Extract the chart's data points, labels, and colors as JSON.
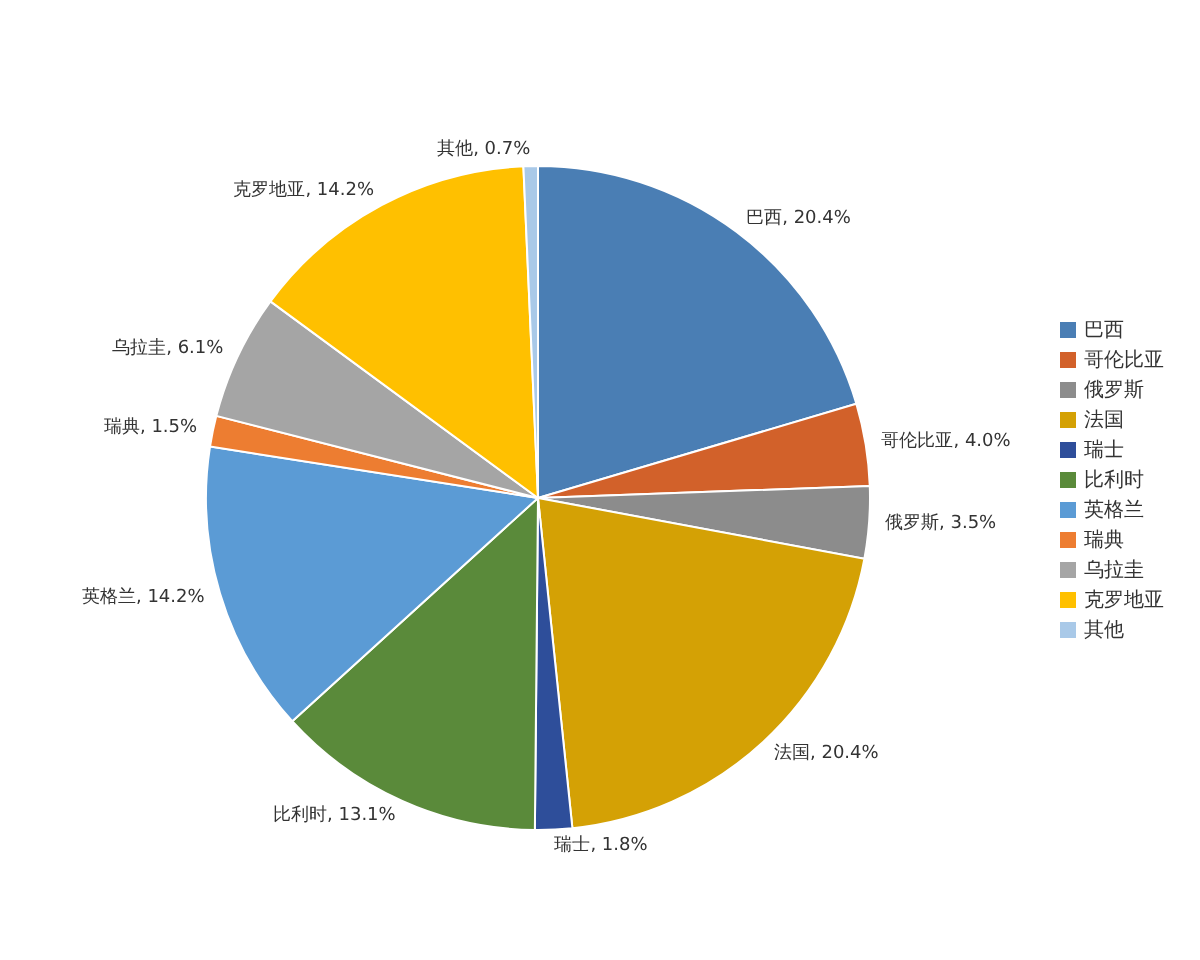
{
  "chart_data": {
    "type": "pie",
    "categories": [
      "巴西",
      "哥伦比亚",
      "俄罗斯",
      "法国",
      "瑞士",
      "比利时",
      "英格兰",
      "瑞典",
      "乌拉圭",
      "克罗地亚",
      "其他"
    ],
    "values": [
      20.4,
      4.0,
      3.5,
      20.4,
      1.8,
      13.1,
      14.2,
      1.5,
      6.1,
      14.2,
      0.7
    ],
    "value_labels": [
      "巴西, 20.4%",
      "哥伦比亚, 4.0%",
      "俄罗斯, 3.5%",
      "法国, 20.4%",
      "瑞士, 1.8%",
      "比利时, 13.1%",
      "英格兰, 14.2%",
      "瑞典, 1.5%",
      "乌拉圭, 6.1%",
      "克罗地亚, 14.2%",
      "其他, 0.7%"
    ],
    "colors": [
      "#4a7eb4",
      "#d2612a",
      "#8c8c8c",
      "#d4a105",
      "#2e4e9a",
      "#5a8a3a",
      "#5b9bd5",
      "#ed7d31",
      "#a5a5a5",
      "#ffc000",
      "#a9c9e8"
    ],
    "legend": "right"
  }
}
